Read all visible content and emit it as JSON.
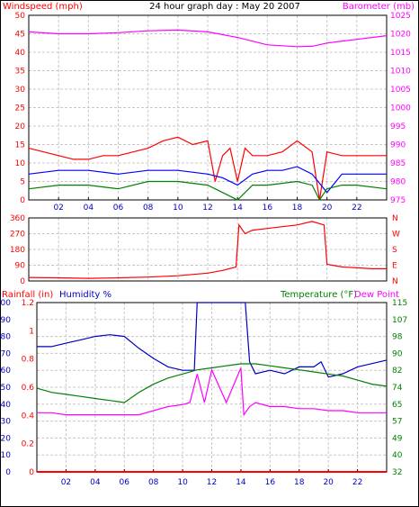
{
  "chart_data": [
    {
      "type": "line",
      "title": "24 hour graph day : May 20 2007",
      "ylabel_left": "Windspeed (mph)",
      "ylabel_right": "Barometer (mb)",
      "x_ticks": [
        "02",
        "04",
        "06",
        "08",
        "10",
        "12",
        "14",
        "16",
        "18",
        "20",
        "22"
      ],
      "y_left_ticks": [
        "50",
        "45",
        "40",
        "35",
        "30",
        "25",
        "20",
        "15",
        "10",
        "5",
        "0"
      ],
      "y_right_ticks": [
        "1025",
        "1020",
        "1015",
        "1010",
        "1005",
        "1000",
        "995",
        "990",
        "985",
        "980",
        "975"
      ],
      "ylim_left": [
        0,
        50
      ],
      "ylim_right": [
        975,
        1025
      ],
      "colors": {
        "barometer": "#ff00ff",
        "gust": "#ff0000",
        "avg": "#0000ff",
        "wind": "#008000",
        "label_left": "#ff0000",
        "label_right": "#ff00ff"
      },
      "grid": true,
      "series": [
        {
          "key": "barometer",
          "axis": "right",
          "x": [
            0,
            2,
            4,
            6,
            8,
            10,
            12,
            14,
            16,
            18,
            19,
            20,
            22,
            24
          ],
          "y": [
            1020.5,
            1020,
            1020,
            1020.3,
            1020.8,
            1021,
            1020.5,
            1019,
            1017,
            1016.5,
            1016.6,
            1017.5,
            1018.5,
            1019.5
          ]
        },
        {
          "key": "gust",
          "axis": "left",
          "x": [
            0,
            1,
            2,
            3,
            4,
            5,
            6,
            7,
            8,
            9,
            10,
            11,
            12,
            12.5,
            13,
            13.5,
            14,
            14.5,
            15,
            16,
            17,
            18,
            19,
            19.5,
            20,
            21,
            22,
            23,
            24
          ],
          "y": [
            14,
            13,
            12,
            11,
            11,
            12,
            12,
            13,
            14,
            16,
            17,
            15,
            16,
            5,
            12,
            14,
            5,
            14,
            12,
            12,
            13,
            16,
            13,
            0,
            13,
            12,
            12,
            12,
            12
          ]
        },
        {
          "key": "avg",
          "axis": "left",
          "x": [
            0,
            2,
            4,
            6,
            8,
            10,
            12,
            13,
            14,
            15,
            16,
            17,
            18,
            19,
            20,
            21,
            22,
            23,
            24
          ],
          "y": [
            7,
            8,
            8,
            7,
            8,
            8,
            7,
            6,
            4,
            7,
            8,
            8,
            9,
            7,
            2,
            7,
            7,
            7,
            7
          ]
        },
        {
          "key": "wind",
          "axis": "left",
          "x": [
            0,
            2,
            4,
            6,
            8,
            10,
            12,
            13,
            13.5,
            14,
            15,
            16,
            18,
            19,
            19.5,
            20,
            21,
            22,
            24
          ],
          "y": [
            3,
            4,
            4,
            3,
            5,
            5,
            4,
            2,
            1,
            0,
            4,
            4,
            5,
            4,
            0,
            3,
            4,
            4,
            3
          ]
        }
      ]
    },
    {
      "type": "line",
      "title": "",
      "y_left_ticks": [
        "360",
        "270",
        "180",
        "90",
        "0"
      ],
      "y_right_ticks": [
        "N",
        "W",
        "S",
        "E",
        "N"
      ],
      "ylim": [
        0,
        360
      ],
      "colors": {
        "direction": "#ff0000"
      },
      "series": [
        {
          "key": "direction",
          "x": [
            0,
            2,
            4,
            6,
            8,
            10,
            12,
            13,
            13.9,
            14.1,
            14.5,
            15,
            16,
            17,
            18,
            19,
            19.8,
            20,
            21,
            22,
            23,
            24
          ],
          "y": [
            20,
            18,
            15,
            18,
            22,
            30,
            45,
            60,
            80,
            320,
            270,
            290,
            300,
            310,
            320,
            340,
            320,
            95,
            80,
            75,
            70,
            70
          ]
        }
      ]
    },
    {
      "type": "line",
      "ylabel_left_1": "Rainfall (in)",
      "ylabel_left_2": "Humidity %",
      "ylabel_right_1": "Temperature (°F)",
      "ylabel_right_2": "Dew Point",
      "rain_ticks": [
        "1.2",
        "1",
        "0.8",
        "0.6",
        "0.4",
        "0.2",
        "0"
      ],
      "hum_ticks": [
        "100",
        "90",
        "80",
        "70",
        "60",
        "50",
        "40",
        "30",
        "20",
        "10",
        "0"
      ],
      "temp_ticks": [
        "115",
        "107",
        "98",
        "90",
        "82",
        "74",
        "65",
        "57",
        "49",
        "40",
        "32"
      ],
      "x_ticks": [
        "02",
        "04",
        "06",
        "08",
        "10",
        "12",
        "14",
        "16",
        "18",
        "20",
        "22"
      ],
      "ylim_humidity": [
        0,
        100
      ],
      "ylim_temperature": [
        32,
        115
      ],
      "colors": {
        "humidity": "#0000c0",
        "temperature": "#008000",
        "dewpoint": "#ff00ff",
        "rain": "#ff0000",
        "label_rain": "#ff0000",
        "label_hum": "#0000c0",
        "label_temp": "#008000",
        "label_dew": "#ff00ff"
      },
      "series": [
        {
          "key": "humidity",
          "axis": "hum",
          "x": [
            0,
            1,
            2,
            3,
            4,
            5,
            6,
            7,
            8,
            9,
            10,
            10.8,
            11,
            11.2,
            12,
            13,
            14,
            14.3,
            14.6,
            15,
            16,
            17,
            18,
            19,
            19.5,
            20,
            21,
            22,
            23,
            24
          ],
          "y": [
            74,
            74,
            76,
            78,
            80,
            81,
            80,
            73,
            67,
            62,
            60,
            60,
            100,
            100,
            100,
            100,
            100,
            100,
            65,
            58,
            60,
            58,
            62,
            62,
            65,
            56,
            58,
            62,
            64,
            66
          ]
        },
        {
          "key": "temperature",
          "axis": "temp",
          "x": [
            0,
            1,
            2,
            3,
            4,
            5,
            6,
            7,
            8,
            9,
            10,
            11,
            12,
            13,
            14,
            15,
            16,
            17,
            18,
            19,
            20,
            21,
            22,
            23,
            24
          ],
          "y": [
            73,
            71,
            70,
            69,
            68,
            67,
            66,
            71,
            75,
            78,
            80,
            82,
            83,
            84,
            85,
            85,
            84,
            83,
            82,
            81,
            80,
            79,
            77,
            75,
            74
          ]
        },
        {
          "key": "dewpoint",
          "axis": "temp",
          "x": [
            0,
            1,
            2,
            3,
            4,
            5,
            6,
            7,
            8,
            9,
            10,
            10.5,
            11,
            11.5,
            12,
            13,
            14,
            14.2,
            14.6,
            15,
            16,
            17,
            18,
            19,
            20,
            21,
            22,
            23,
            24
          ],
          "y": [
            61,
            61,
            60,
            60,
            60,
            60,
            60,
            60,
            62,
            64,
            65,
            66,
            80,
            66,
            82,
            66,
            83,
            60,
            64,
            66,
            64,
            64,
            63,
            63,
            62,
            62,
            61,
            61,
            61
          ]
        },
        {
          "key": "rain",
          "axis": "rain",
          "x": [
            0,
            24
          ],
          "y": [
            0,
            0
          ]
        }
      ]
    }
  ]
}
